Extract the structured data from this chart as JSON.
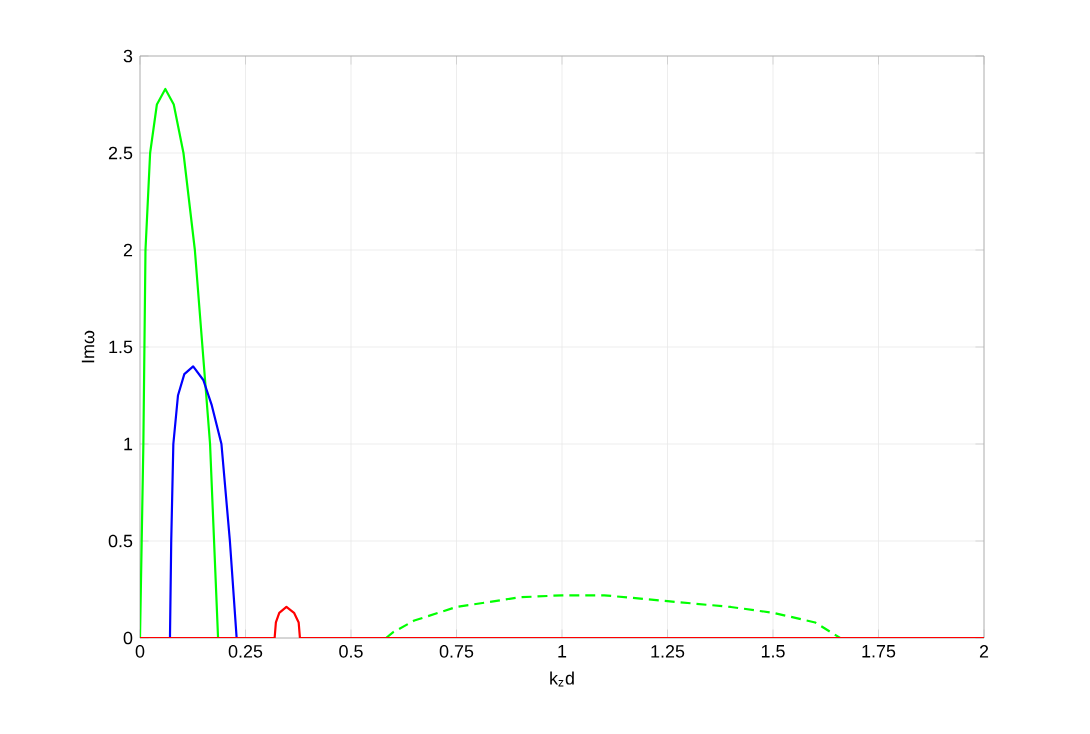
{
  "chart_data": {
    "type": "line",
    "xlabel": "k$_{z}$d",
    "ylabel": "Imω",
    "xlim": [
      0,
      2
    ],
    "ylim": [
      0,
      3
    ],
    "xticks": [
      0,
      0.25,
      0.5,
      0.75,
      1,
      1.25,
      1.5,
      1.75,
      2
    ],
    "yticks": [
      0,
      0.5,
      1,
      1.5,
      2,
      2.5,
      3
    ],
    "grid": true,
    "series": [
      {
        "color": "#00ff00",
        "line_style": "solid",
        "x": [
          0,
          0.004,
          0.008,
          0.013,
          0.024,
          0.04,
          0.06,
          0.08,
          0.103,
          0.13,
          0.166,
          0.185
        ],
        "values": [
          0,
          0.5,
          1,
          2,
          2.5,
          2.75,
          2.83,
          2.75,
          2.5,
          2,
          1,
          0
        ]
      },
      {
        "color": "#0000ff",
        "line_style": "solid",
        "x": [
          0.071,
          0.074,
          0.079,
          0.09,
          0.105,
          0.126,
          0.15,
          0.17,
          0.193,
          0.213,
          0.229
        ],
        "values": [
          0,
          0.5,
          1,
          1.25,
          1.36,
          1.4,
          1.33,
          1.2,
          1,
          0.5,
          0
        ]
      },
      {
        "color": "#00ff00",
        "line_style": "dashed",
        "x": [
          0.583,
          0.6,
          0.65,
          0.75,
          0.9,
          1.0,
          1.1,
          1.25,
          1.4,
          1.5,
          1.6,
          1.659
        ],
        "values": [
          0,
          0.03,
          0.09,
          0.16,
          0.21,
          0.22,
          0.22,
          0.19,
          0.16,
          0.13,
          0.08,
          0
        ]
      },
      {
        "color": "#ff0000",
        "line_style": "solid",
        "x": [
          0,
          0.319,
          0.322,
          0.33,
          0.347,
          0.365,
          0.376,
          0.379,
          2
        ],
        "values": [
          0,
          0,
          0.08,
          0.13,
          0.16,
          0.13,
          0.08,
          0,
          0
        ]
      }
    ]
  }
}
